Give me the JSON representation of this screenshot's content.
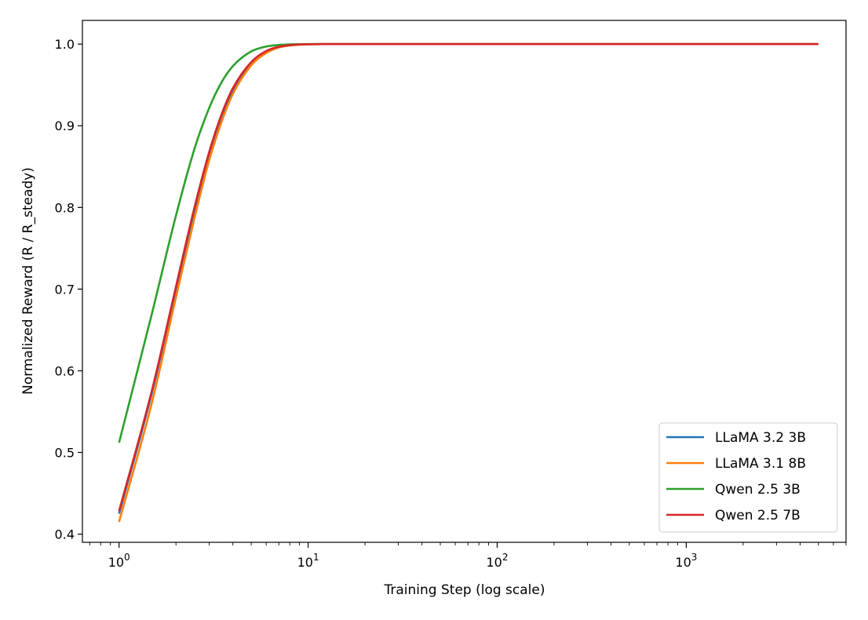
{
  "chart_data": {
    "type": "line",
    "title": "",
    "xlabel": "Training Step (log scale)",
    "ylabel": "Normalized Reward (R / R_steady)",
    "xscale": "log",
    "xlim": [
      0.64,
      7000
    ],
    "ylim": [
      0.39,
      1.029
    ],
    "xticks": [
      {
        "value": 1,
        "base": "10",
        "exp": "0"
      },
      {
        "value": 10,
        "base": "10",
        "exp": "1"
      },
      {
        "value": 100,
        "base": "10",
        "exp": "2"
      },
      {
        "value": 1000,
        "base": "10",
        "exp": "3"
      }
    ],
    "yticks": [
      {
        "value": 0.4,
        "label": "0.4"
      },
      {
        "value": 0.5,
        "label": "0.5"
      },
      {
        "value": 0.6,
        "label": "0.6"
      },
      {
        "value": 0.7,
        "label": "0.7"
      },
      {
        "value": 0.8,
        "label": "0.8"
      },
      {
        "value": 0.9,
        "label": "0.9"
      },
      {
        "value": 1.0,
        "label": "1.0"
      }
    ],
    "grid": false,
    "legend_position": "bottom-right",
    "series": [
      {
        "name": "LLaMA 3.2 3B",
        "color": "#1f77b4",
        "x": [
          1,
          1.5,
          2,
          2.5,
          3,
          3.5,
          4,
          5,
          6,
          7,
          8,
          10,
          12,
          15,
          20,
          50,
          100,
          1000,
          5000
        ],
        "y": [
          0.425,
          0.575,
          0.7,
          0.796,
          0.866,
          0.913,
          0.944,
          0.977,
          0.991,
          0.9965,
          0.9986,
          0.9998,
          1.0,
          1.0,
          1.0,
          1.0,
          1.0,
          1.0,
          1.0
        ]
      },
      {
        "name": "LLaMA 3.1 8B",
        "color": "#ff7f0e",
        "x": [
          1,
          1.5,
          2,
          2.5,
          3,
          3.5,
          4,
          5,
          6,
          7,
          8,
          10,
          12,
          15,
          20,
          50,
          100,
          1000,
          5000
        ],
        "y": [
          0.415,
          0.563,
          0.69,
          0.786,
          0.858,
          0.906,
          0.939,
          0.974,
          0.989,
          0.9958,
          0.9983,
          0.9997,
          1.0,
          1.0,
          1.0,
          1.0,
          1.0,
          1.0,
          1.0
        ]
      },
      {
        "name": "Qwen 2.5 3B",
        "color": "#2ca02c",
        "x": [
          1,
          1.5,
          2,
          2.5,
          3,
          3.5,
          4,
          5,
          6,
          7,
          8,
          10,
          12,
          15,
          20,
          50,
          100,
          1000,
          5000
        ],
        "y": [
          0.512,
          0.672,
          0.79,
          0.871,
          0.922,
          0.954,
          0.973,
          0.991,
          0.997,
          0.9989,
          0.9996,
          1.0,
          1.0,
          1.0,
          1.0,
          1.0,
          1.0,
          1.0,
          1.0
        ]
      },
      {
        "name": "Qwen 2.5 7B",
        "color": "#d62728",
        "x": [
          1,
          1.5,
          2,
          2.5,
          3,
          3.5,
          4,
          5,
          6,
          7,
          8,
          10,
          12,
          15,
          20,
          50,
          100,
          1000,
          5000
        ],
        "y": [
          0.428,
          0.578,
          0.703,
          0.799,
          0.868,
          0.915,
          0.946,
          0.978,
          0.9915,
          0.9967,
          0.9987,
          0.9998,
          1.0,
          1.0,
          1.0,
          1.0,
          1.0,
          1.0,
          1.0
        ]
      }
    ]
  }
}
